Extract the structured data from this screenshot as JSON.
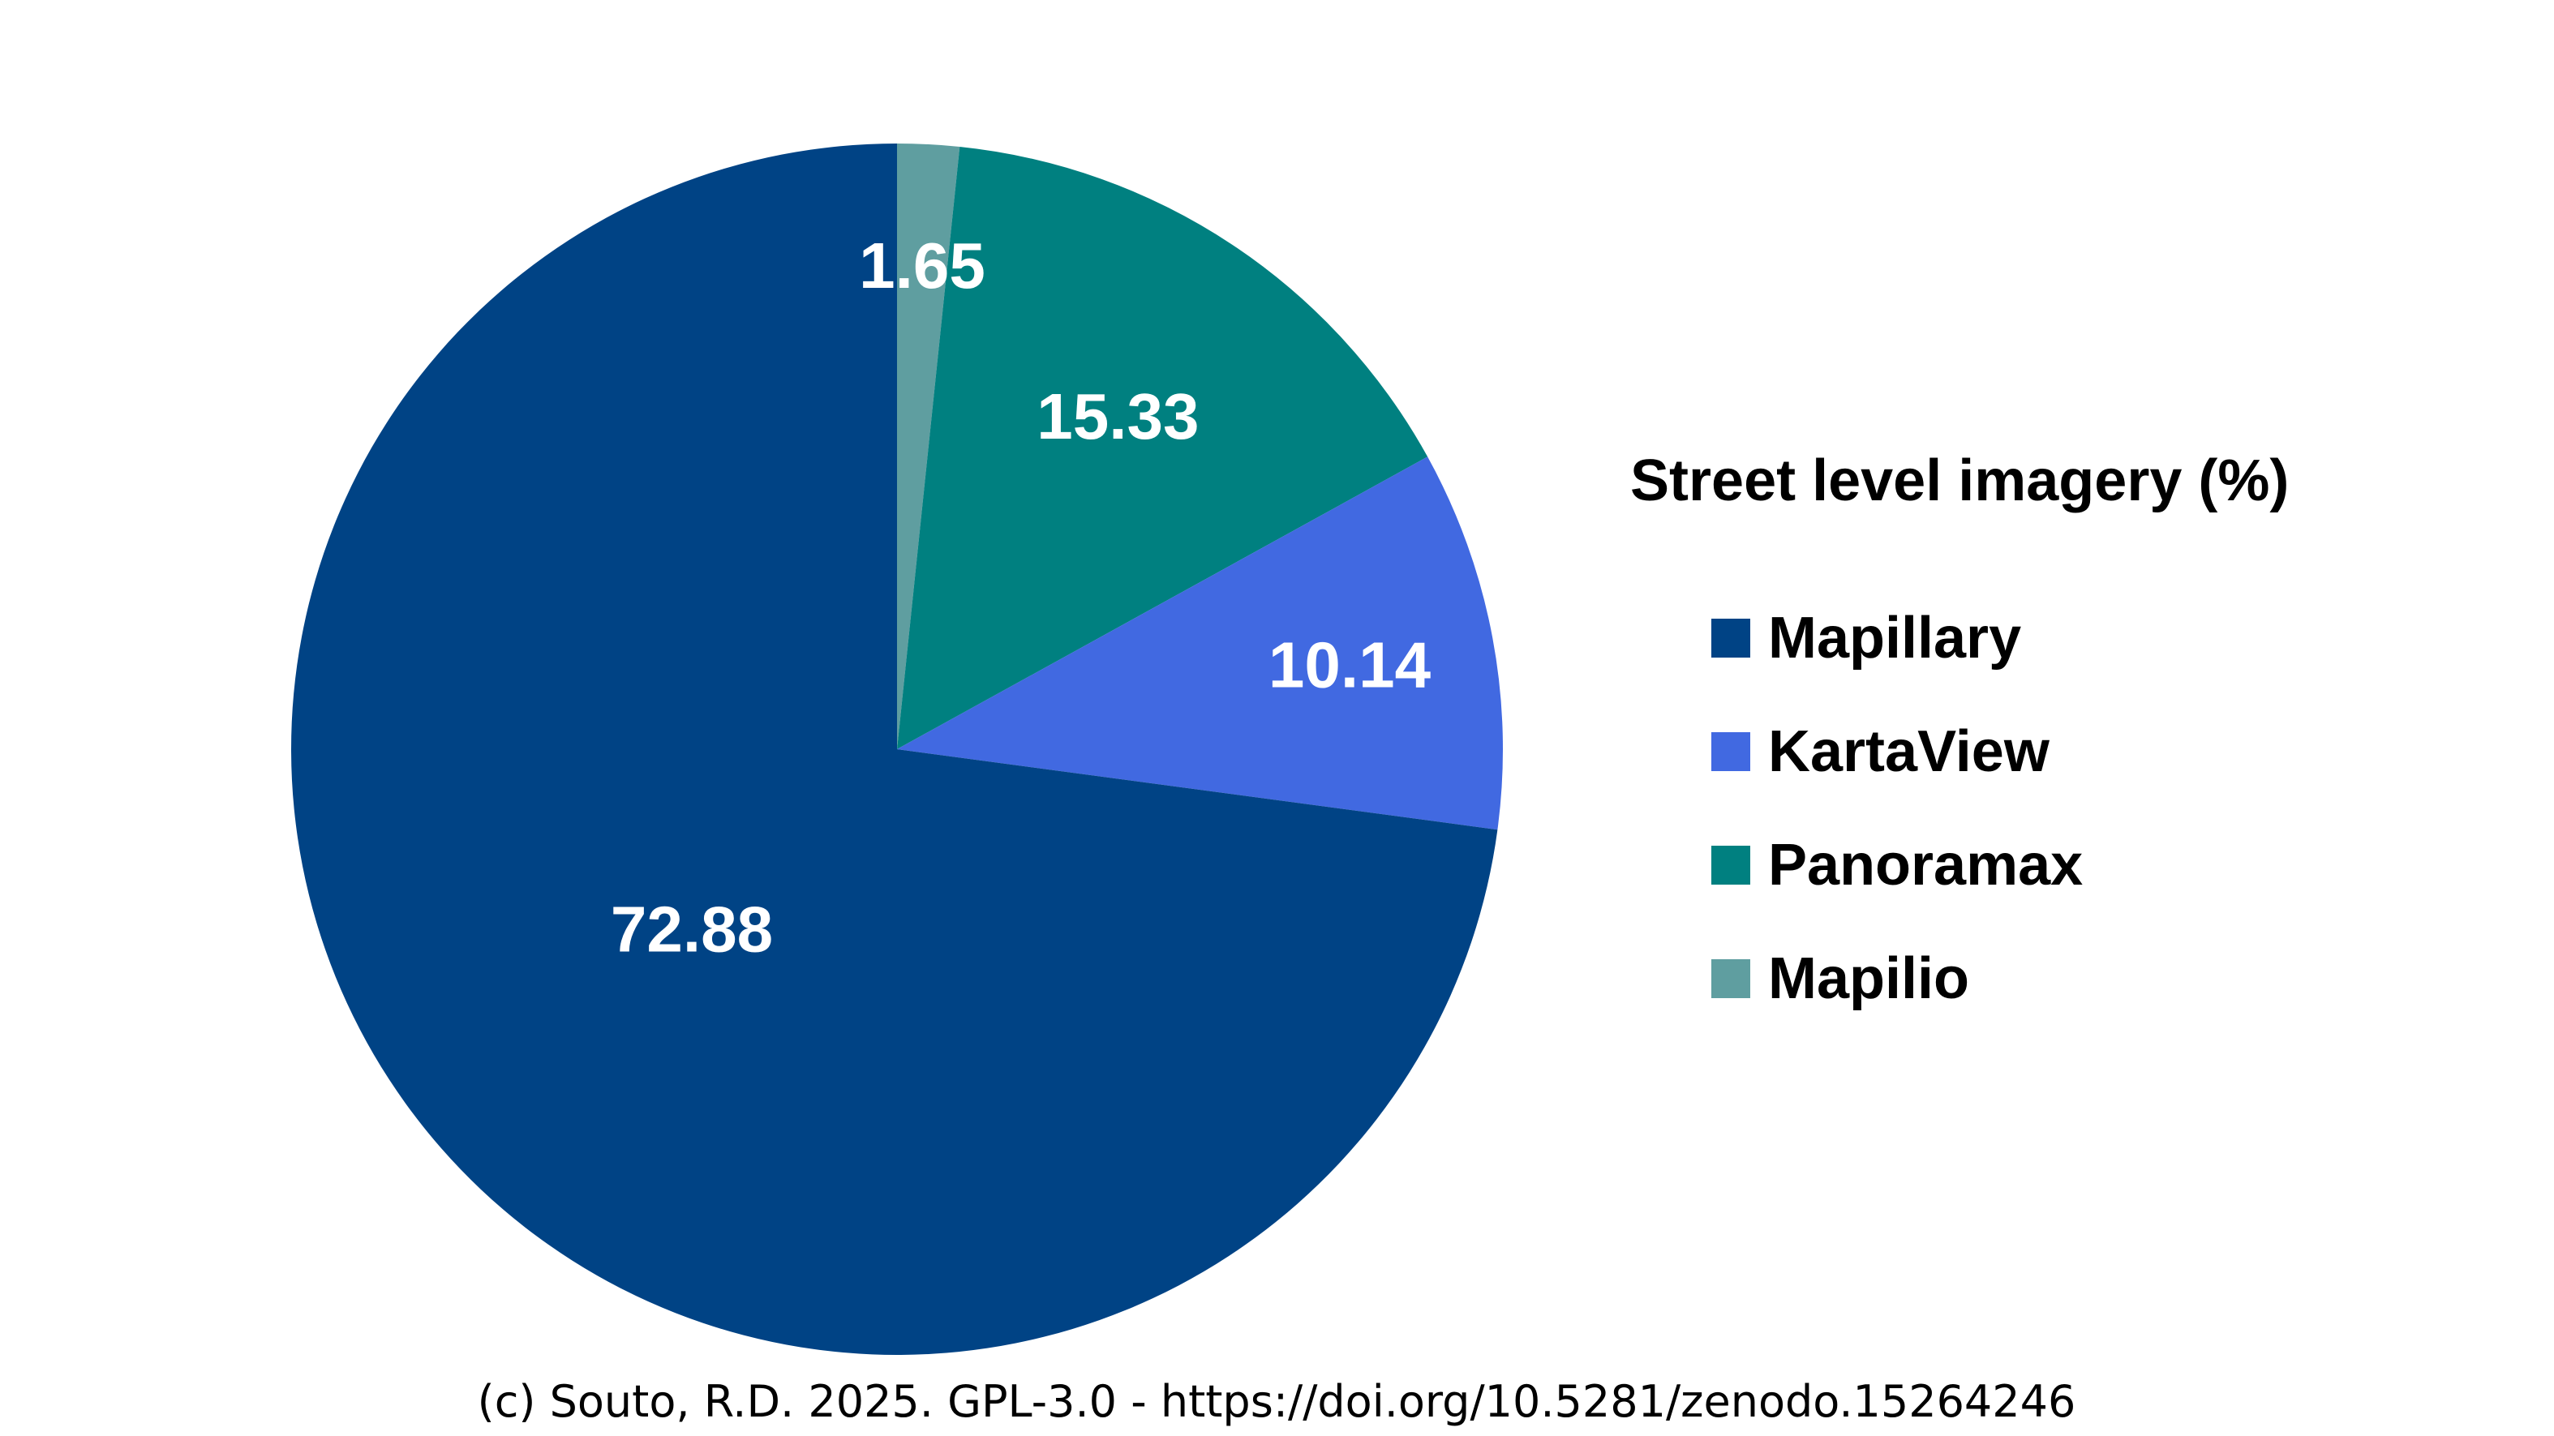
{
  "chart_data": {
    "type": "pie",
    "legend_title": "Street level imagery (%)",
    "legend_placement": "right",
    "slices": [
      {
        "label": "Mapillary",
        "value": 72.88,
        "display": "72.88",
        "color": "#004385"
      },
      {
        "label": "KartaView",
        "value": 10.14,
        "display": "10.14",
        "color": "#4169e1"
      },
      {
        "label": "Panoramax",
        "value": 15.33,
        "display": "15.33",
        "color": "#008080"
      },
      {
        "label": "Mapilio",
        "value": 1.65,
        "display": "1.65",
        "color": "#5f9ea0"
      }
    ],
    "start_angle": "top",
    "direction": "clockwise_from_mapilio"
  },
  "caption": "(c) Souto, R.D. 2025. GPL-3.0 - https://doi.org/10.5281/zenodo.15264246"
}
